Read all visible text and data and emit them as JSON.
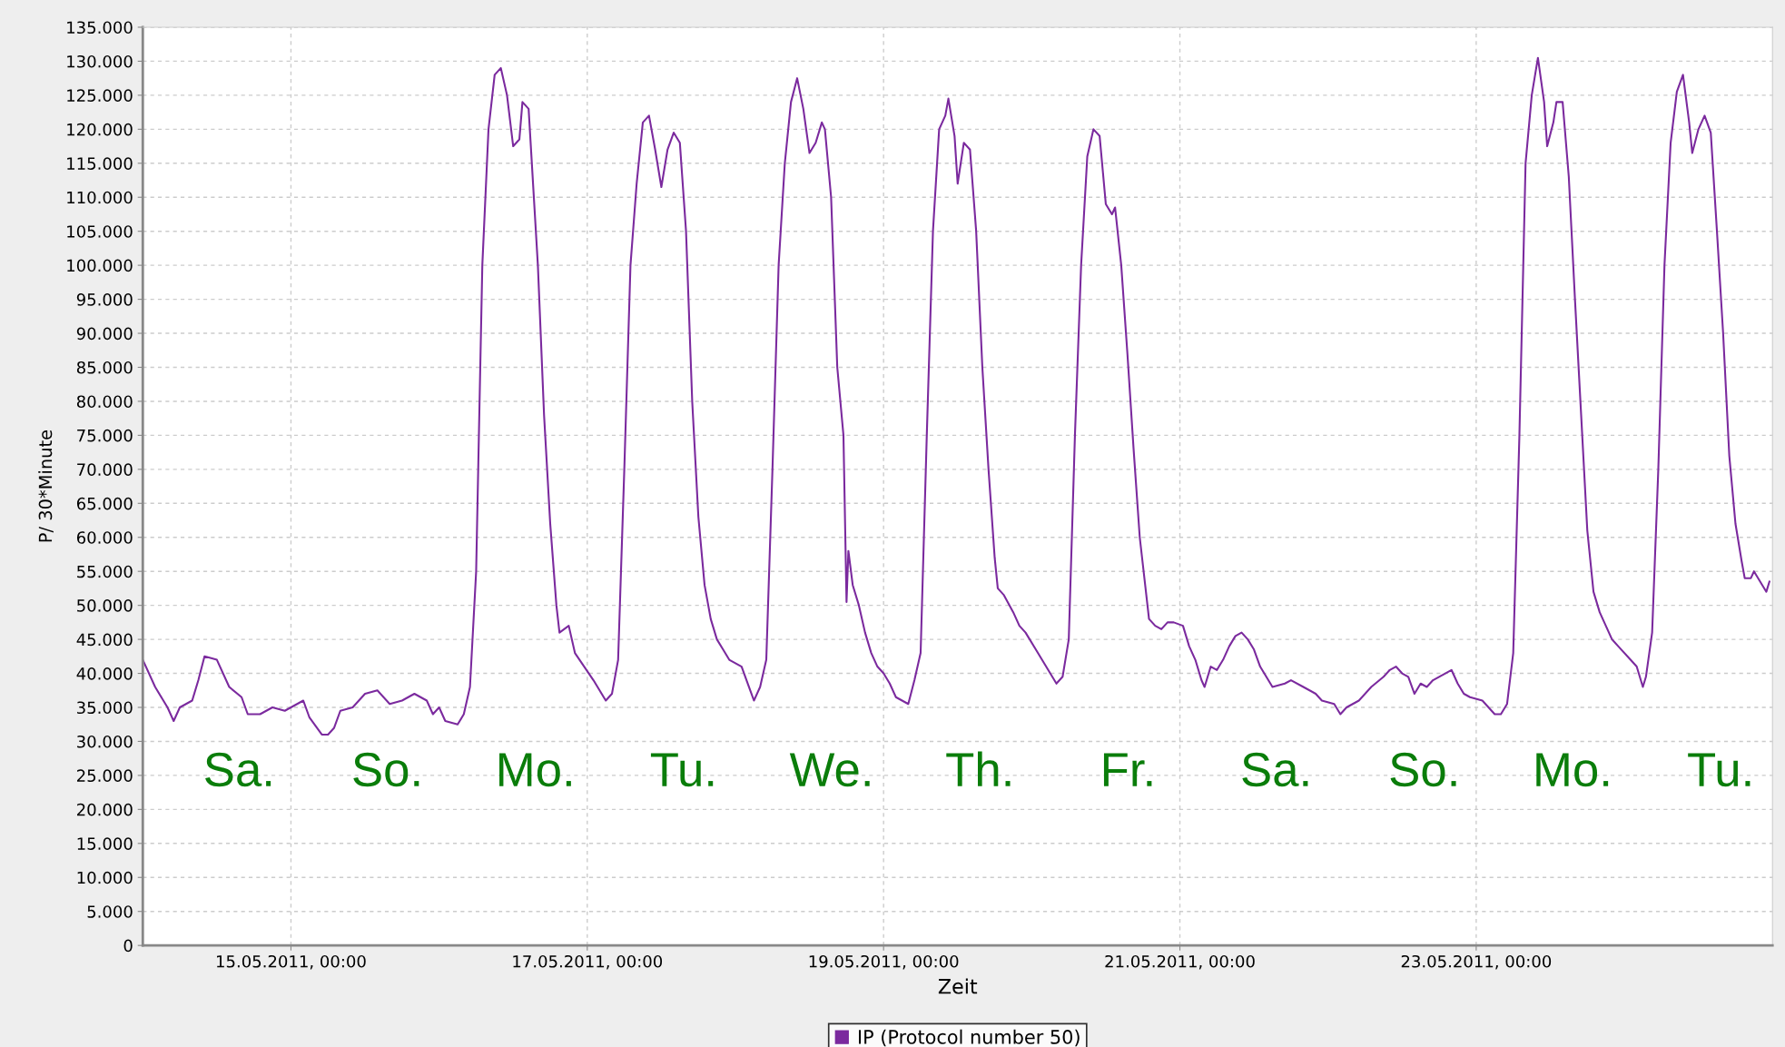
{
  "chart_data": {
    "type": "line",
    "xlabel": "Zeit",
    "ylabel": "P/ 30*Minute",
    "xlim": [
      "2011-05-14T00:00",
      "2011-05-25T00:00"
    ],
    "xticks": [
      {
        "value": "2011-05-15T00:00",
        "label": "15.05.2011, 00:00"
      },
      {
        "value": "2011-05-17T00:00",
        "label": "17.05.2011, 00:00"
      },
      {
        "value": "2011-05-19T00:00",
        "label": "19.05.2011, 00:00"
      },
      {
        "value": "2011-05-21T00:00",
        "label": "21.05.2011, 00:00"
      },
      {
        "value": "2011-05-23T00:00",
        "label": "23.05.2011, 00:00"
      }
    ],
    "ylim": [
      0,
      135000
    ],
    "yticks": [
      0,
      {
        "value": 5000,
        "label": "5.000"
      },
      {
        "value": 10000,
        "label": "10.000"
      },
      {
        "value": 15000,
        "label": "15.000"
      },
      {
        "value": 20000,
        "label": "20.000"
      },
      {
        "value": 25000,
        "label": "25.000"
      },
      {
        "value": 30000,
        "label": "30.000"
      },
      {
        "value": 35000,
        "label": "35.000"
      },
      {
        "value": 40000,
        "label": "40.000"
      },
      {
        "value": 45000,
        "label": "45.000"
      },
      {
        "value": 50000,
        "label": "50.000"
      },
      {
        "value": 55000,
        "label": "55.000"
      },
      {
        "value": 60000,
        "label": "60.000"
      },
      {
        "value": 65000,
        "label": "65.000"
      },
      {
        "value": 70000,
        "label": "70.000"
      },
      {
        "value": 75000,
        "label": "75.000"
      },
      {
        "value": 80000,
        "label": "80.000"
      },
      {
        "value": 85000,
        "label": "85.000"
      },
      {
        "value": 90000,
        "label": "90.000"
      },
      {
        "value": 95000,
        "label": "95.000"
      },
      {
        "value": 100000,
        "label": "100.000"
      },
      {
        "value": 105000,
        "label": "105.000"
      },
      {
        "value": 110000,
        "label": "110.000"
      },
      {
        "value": 115000,
        "label": "115.000"
      },
      {
        "value": 120000,
        "label": "120.000"
      },
      {
        "value": 125000,
        "label": "125.000"
      },
      {
        "value": 130000,
        "label": "130.000"
      },
      {
        "value": 135000,
        "label": "135.000"
      }
    ],
    "grid": true,
    "legend": "bottom",
    "marker": "none",
    "line_style": "solid",
    "series": [
      {
        "name": "IP (Protocol number 50)",
        "color": "#7b2a9e",
        "x": [
          "2011-05-14T00:00",
          "2011-05-14T02:00",
          "2011-05-14T04:00",
          "2011-05-14T05:00",
          "2011-05-14T06:00",
          "2011-05-14T08:00",
          "2011-05-14T09:00",
          "2011-05-14T10:00",
          "2011-05-14T12:00",
          "2011-05-14T14:00",
          "2011-05-14T16:00",
          "2011-05-14T17:00",
          "2011-05-14T19:00",
          "2011-05-14T21:00",
          "2011-05-14T23:00",
          "2011-05-15T01:00",
          "2011-05-15T02:00",
          "2011-05-15T03:00",
          "2011-05-15T05:00",
          "2011-05-15T06:00",
          "2011-05-15T07:00",
          "2011-05-15T08:00",
          "2011-05-15T10:00",
          "2011-05-15T12:00",
          "2011-05-15T14:00",
          "2011-05-15T16:00",
          "2011-05-15T18:00",
          "2011-05-15T20:00",
          "2011-05-15T22:00",
          "2011-05-15T23:00",
          "2011-05-16T00:00",
          "2011-05-16T01:00",
          "2011-05-16T03:00",
          "2011-05-16T04:00",
          "2011-05-16T05:00",
          "2011-05-16T06:00",
          "2011-05-16T07:00",
          "2011-05-16T08:00",
          "2011-05-16T09:00",
          "2011-05-16T10:00",
          "2011-05-16T11:00",
          "2011-05-16T12:00",
          "2011-05-16T13:00",
          "2011-05-16T13:30",
          "2011-05-16T14:30",
          "2011-05-16T16:00",
          "2011-05-16T17:00",
          "2011-05-16T18:00",
          "2011-05-16T19:00",
          "2011-05-16T19:30",
          "2011-05-16T21:00",
          "2011-05-16T22:00",
          "2011-05-16T23:30",
          "2011-05-17T01:00",
          "2011-05-17T02:00",
          "2011-05-17T03:00",
          "2011-05-17T04:00",
          "2011-05-17T05:00",
          "2011-05-17T06:00",
          "2011-05-17T07:00",
          "2011-05-17T08:00",
          "2011-05-17T09:00",
          "2011-05-17T10:00",
          "2011-05-17T11:00",
          "2011-05-17T12:00",
          "2011-05-17T13:00",
          "2011-05-17T14:00",
          "2011-05-17T15:00",
          "2011-05-17T16:00",
          "2011-05-17T17:00",
          "2011-05-17T18:00",
          "2011-05-17T19:00",
          "2011-05-17T20:00",
          "2011-05-17T21:00",
          "2011-05-17T22:00",
          "2011-05-17T23:00",
          "2011-05-18T01:00",
          "2011-05-18T02:00",
          "2011-05-18T03:00",
          "2011-05-18T04:00",
          "2011-05-18T05:00",
          "2011-05-18T06:00",
          "2011-05-18T07:00",
          "2011-05-18T08:00",
          "2011-05-18T09:00",
          "2011-05-18T10:00",
          "2011-05-18T11:00",
          "2011-05-18T12:00",
          "2011-05-18T13:00",
          "2011-05-18T14:00",
          "2011-05-18T14:30",
          "2011-05-18T15:30",
          "2011-05-18T16:30",
          "2011-05-18T17:30",
          "2011-05-18T18:00",
          "2011-05-18T18:18",
          "2011-05-18T19:00",
          "2011-05-18T20:00",
          "2011-05-18T21:00",
          "2011-05-18T22:00",
          "2011-05-18T23:00",
          "2011-05-19T00:00",
          "2011-05-19T01:00",
          "2011-05-19T02:00",
          "2011-05-19T04:00",
          "2011-05-19T05:00",
          "2011-05-19T06:00",
          "2011-05-19T07:00",
          "2011-05-19T08:00",
          "2011-05-19T09:00",
          "2011-05-19T10:00",
          "2011-05-19T10:30",
          "2011-05-19T11:30",
          "2011-05-19T12:00",
          "2011-05-19T13:00",
          "2011-05-19T14:00",
          "2011-05-19T15:00",
          "2011-05-19T16:00",
          "2011-05-19T17:00",
          "2011-05-19T18:00",
          "2011-05-19T18:30",
          "2011-05-19T19:30",
          "2011-05-19T21:00",
          "2011-05-19T22:00",
          "2011-05-19T23:00",
          "2011-05-20T01:00",
          "2011-05-20T02:00",
          "2011-05-20T03:00",
          "2011-05-20T04:00",
          "2011-05-20T05:00",
          "2011-05-20T06:00",
          "2011-05-20T07:00",
          "2011-05-20T08:00",
          "2011-05-20T09:00",
          "2011-05-20T10:00",
          "2011-05-20T11:00",
          "2011-05-20T12:00",
          "2011-05-20T13:00",
          "2011-05-20T13:30",
          "2011-05-20T14:30",
          "2011-05-20T15:30",
          "2011-05-20T16:30",
          "2011-05-20T17:30",
          "2011-05-20T18:30",
          "2011-05-20T19:00",
          "2011-05-20T20:00",
          "2011-05-20T21:00",
          "2011-05-20T22:00",
          "2011-05-20T23:00",
          "2011-05-21T00:30",
          "2011-05-21T01:30",
          "2011-05-21T02:30",
          "2011-05-21T03:30",
          "2011-05-21T04:00",
          "2011-05-21T05:00",
          "2011-05-21T06:00",
          "2011-05-21T07:00",
          "2011-05-21T08:00",
          "2011-05-21T09:00",
          "2011-05-21T10:00",
          "2011-05-21T11:00",
          "2011-05-21T12:00",
          "2011-05-21T13:00",
          "2011-05-21T14:00",
          "2011-05-21T15:00",
          "2011-05-21T17:00",
          "2011-05-21T18:00",
          "2011-05-21T20:00",
          "2011-05-21T22:00",
          "2011-05-21T23:00",
          "2011-05-22T01:00",
          "2011-05-22T02:00",
          "2011-05-22T03:00",
          "2011-05-22T05:00",
          "2011-05-22T07:00",
          "2011-05-22T09:00",
          "2011-05-22T10:00",
          "2011-05-22T11:00",
          "2011-05-22T12:00",
          "2011-05-22T13:00",
          "2011-05-22T14:00",
          "2011-05-22T15:00",
          "2011-05-22T16:00",
          "2011-05-22T17:00",
          "2011-05-22T18:00",
          "2011-05-22T19:00",
          "2011-05-22T20:00",
          "2011-05-22T21:00",
          "2011-05-22T22:00",
          "2011-05-22T23:00",
          "2011-05-23T01:00",
          "2011-05-23T02:00",
          "2011-05-23T03:00",
          "2011-05-23T04:00",
          "2011-05-23T05:00",
          "2011-05-23T06:00",
          "2011-05-23T07:00",
          "2011-05-23T08:00",
          "2011-05-23T09:00",
          "2011-05-23T10:00",
          "2011-05-23T11:00",
          "2011-05-23T11:30",
          "2011-05-23T12:30",
          "2011-05-23T13:00",
          "2011-05-23T14:00",
          "2011-05-23T15:00",
          "2011-05-23T16:00",
          "2011-05-23T17:00",
          "2011-05-23T18:00",
          "2011-05-23T19:00",
          "2011-05-23T20:00",
          "2011-05-23T21:00",
          "2011-05-23T22:00",
          "2011-05-23T23:00",
          "2011-05-24T01:00",
          "2011-05-24T02:00",
          "2011-05-24T03:00",
          "2011-05-24T03:30",
          "2011-05-24T04:30",
          "2011-05-24T05:30",
          "2011-05-24T06:30",
          "2011-05-24T07:30",
          "2011-05-24T08:30",
          "2011-05-24T09:30",
          "2011-05-24T10:30",
          "2011-05-24T11:00",
          "2011-05-24T12:00",
          "2011-05-24T13:00",
          "2011-05-24T14:00",
          "2011-05-24T15:00",
          "2011-05-24T16:00",
          "2011-05-24T17:00",
          "2011-05-24T18:00",
          "2011-05-24T19:00",
          "2011-05-24T19:30",
          "2011-05-24T20:30",
          "2011-05-24T21:00",
          "2011-05-24T22:00",
          "2011-05-24T23:00",
          "2011-05-24T23:30"
        ],
        "values": [
          42000,
          38000,
          35000,
          33000,
          35000,
          36000,
          39000,
          42500,
          42000,
          38000,
          36500,
          34000,
          34000,
          35000,
          34500,
          35500,
          36000,
          33500,
          31000,
          31000,
          32000,
          34500,
          35000,
          37000,
          37500,
          35500,
          36000,
          37000,
          36000,
          34000,
          35000,
          33000,
          32500,
          34000,
          38000,
          55000,
          100000,
          120000,
          128000,
          129000,
          125000,
          117500,
          118500,
          124000,
          123000,
          100000,
          78000,
          62000,
          50000,
          46000,
          47000,
          43000,
          41000,
          39000,
          37500,
          36000,
          37000,
          42000,
          70000,
          100000,
          112000,
          121000,
          122000,
          117000,
          111500,
          117000,
          119500,
          118000,
          105000,
          80000,
          63000,
          53000,
          48000,
          45000,
          43500,
          42000,
          41000,
          38500,
          36000,
          38000,
          42000,
          70000,
          100000,
          115000,
          124000,
          127500,
          123000,
          116500,
          118000,
          121000,
          120000,
          110000,
          85000,
          75000,
          50500,
          58000,
          53000,
          50000,
          46000,
          43000,
          41000,
          40000,
          38500,
          36500,
          35500,
          39000,
          43000,
          75000,
          105000,
          120000,
          122000,
          124500,
          119000,
          112000,
          118000,
          117000,
          105000,
          85000,
          70000,
          57000,
          52500,
          51500,
          49000,
          47000,
          46000,
          43000,
          41500,
          40000,
          38500,
          39500,
          45000,
          75000,
          100000,
          116000,
          120000,
          119000,
          109000,
          107500,
          108500,
          100000,
          87000,
          73000,
          60000,
          52000,
          48000,
          47000,
          46500,
          47500,
          47500,
          47000,
          44000,
          42000,
          39000,
          38000,
          41000,
          40500,
          42000,
          44000,
          45500,
          46000,
          45000,
          43500,
          41000,
          39500,
          38000,
          38500,
          39000,
          38000,
          37000,
          36000,
          35500,
          34000,
          35000,
          36000,
          38000,
          39500,
          40500,
          41000,
          40000,
          39500,
          37000,
          38500,
          38000,
          39000,
          39500,
          40000,
          40500,
          38500,
          37000,
          36500,
          36000,
          35000,
          34000,
          34000,
          35500,
          43000,
          75000,
          115000,
          125000,
          130500,
          124000,
          117500,
          121000,
          124000,
          124000,
          113000,
          95000,
          78000,
          61000,
          52000,
          49000,
          47000,
          45000,
          44000,
          42000,
          41000,
          38000,
          39500,
          46000,
          70000,
          100000,
          118000,
          125500,
          128000,
          121000,
          116500,
          120000,
          122000,
          119500,
          105000,
          90000,
          72000,
          62000,
          56500,
          54000,
          54000,
          55000,
          53500,
          52000,
          53500
        ]
      }
    ],
    "annotations": [
      "Sa.",
      "So.",
      "Mo.",
      "Tu.",
      "We.",
      "Th.",
      "Fr.",
      "Sa.",
      "So.",
      "Mo.",
      "Tu."
    ]
  }
}
